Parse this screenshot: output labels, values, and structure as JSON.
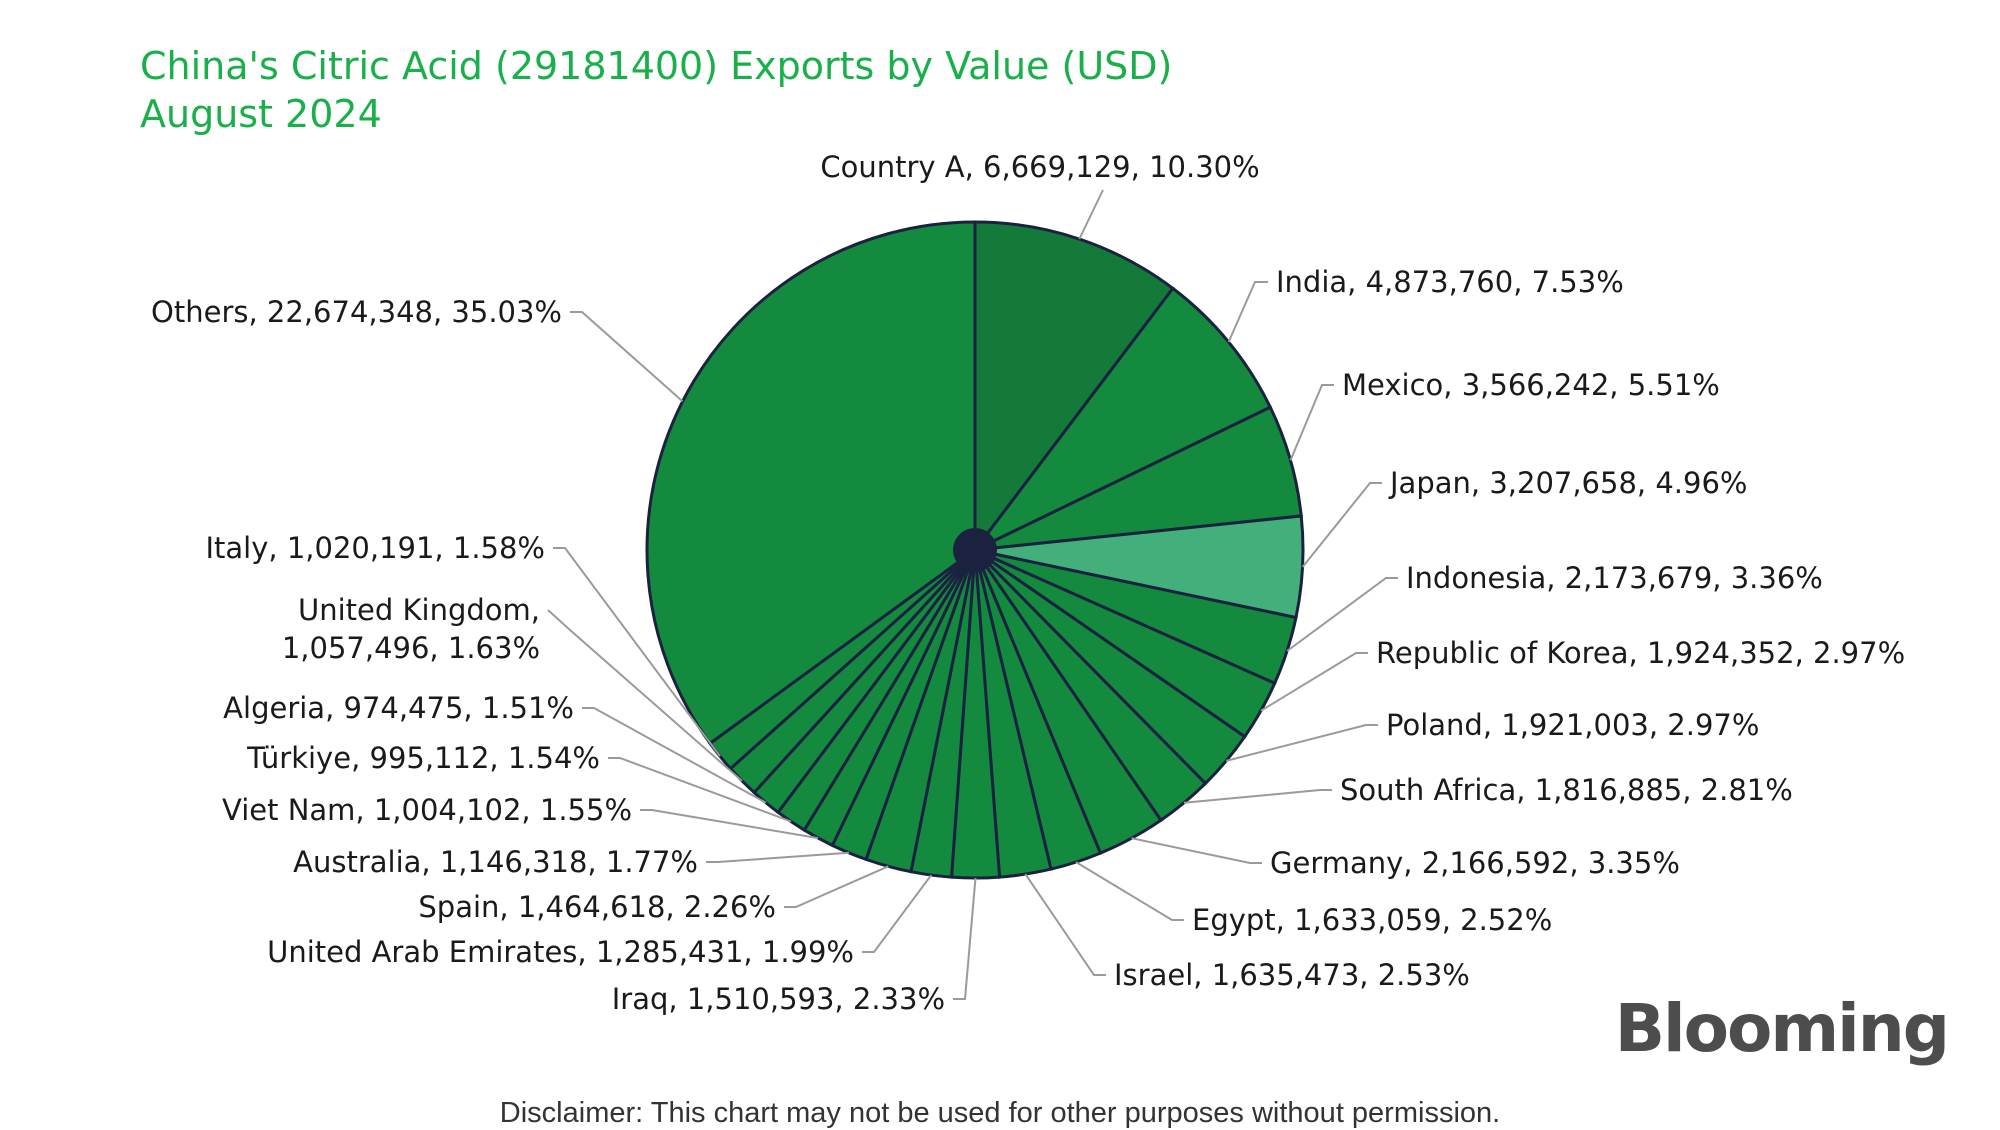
{
  "title_line1": "China's Citric Acid (29181400) Exports by Value (USD)",
  "title_line2": "August 2024",
  "disclaimer": "Disclaimer: This chart may not be used for other purposes without permission.",
  "watermark": "Blooming",
  "colors": {
    "title": "#19b04a",
    "slice_main": "#148a3e",
    "slice_dark": "#137a3a",
    "slice_light": "#43b07b",
    "slice_stroke": "#1b2240",
    "leader": "#9a9a9a"
  },
  "chart_data": {
    "type": "pie",
    "title": "China's Citric Acid (29181400) Exports by Value (USD) August 2024",
    "slices": [
      {
        "name": "Country A",
        "value": 6669129,
        "percent": 10.3,
        "label": "Country A, 6,669,129, 10.30%"
      },
      {
        "name": "India",
        "value": 4873760,
        "percent": 7.53,
        "label": "India, 4,873,760, 7.53%"
      },
      {
        "name": "Mexico",
        "value": 3566242,
        "percent": 5.51,
        "label": "Mexico, 3,566,242, 5.51%"
      },
      {
        "name": "Japan",
        "value": 3207658,
        "percent": 4.96,
        "label": "Japan, 3,207,658, 4.96%"
      },
      {
        "name": "Indonesia",
        "value": 2173679,
        "percent": 3.36,
        "label": "Indonesia, 2,173,679, 3.36%"
      },
      {
        "name": "Republic of Korea",
        "value": 1924352,
        "percent": 2.97,
        "label": "Republic of Korea, 1,924,352, 2.97%"
      },
      {
        "name": "Poland",
        "value": 1921003,
        "percent": 2.97,
        "label": "Poland, 1,921,003, 2.97%"
      },
      {
        "name": "South Africa",
        "value": 1816885,
        "percent": 2.81,
        "label": "South Africa, 1,816,885, 2.81%"
      },
      {
        "name": "Germany",
        "value": 2166592,
        "percent": 3.35,
        "label": "Germany, 2,166,592, 3.35%"
      },
      {
        "name": "Egypt",
        "value": 1633059,
        "percent": 2.52,
        "label": "Egypt, 1,633,059, 2.52%"
      },
      {
        "name": "Israel",
        "value": 1635473,
        "percent": 2.53,
        "label": "Israel, 1,635,473, 2.53%"
      },
      {
        "name": "Iraq",
        "value": 1510593,
        "percent": 2.33,
        "label": "Iraq, 1,510,593, 2.33%"
      },
      {
        "name": "United Arab Emirates",
        "value": 1285431,
        "percent": 1.99,
        "label": "United Arab Emirates, 1,285,431, 1.99%"
      },
      {
        "name": "Spain",
        "value": 1464618,
        "percent": 2.26,
        "label": "Spain, 1,464,618, 2.26%"
      },
      {
        "name": "Australia",
        "value": 1146318,
        "percent": 1.77,
        "label": "Australia, 1,146,318, 1.77%"
      },
      {
        "name": "Viet Nam",
        "value": 1004102,
        "percent": 1.55,
        "label": "Viet Nam, 1,004,102, 1.55%"
      },
      {
        "name": "Türkiye",
        "value": 995112,
        "percent": 1.54,
        "label": "Türkiye, 995,112, 1.54%"
      },
      {
        "name": "Algeria",
        "value": 974475,
        "percent": 1.51,
        "label": "Algeria, 974,475, 1.51%"
      },
      {
        "name": "United Kingdom",
        "value": 1057496,
        "percent": 1.63,
        "label": [
          "United Kingdom,",
          "1,057,496, 1.63%"
        ]
      },
      {
        "name": "Italy",
        "value": 1020191,
        "percent": 1.58,
        "label": "Italy, 1,020,191, 1.58%"
      },
      {
        "name": "Others",
        "value": 22674348,
        "percent": 35.03,
        "label": "Others, 22,674,348, 35.03%"
      }
    ]
  }
}
